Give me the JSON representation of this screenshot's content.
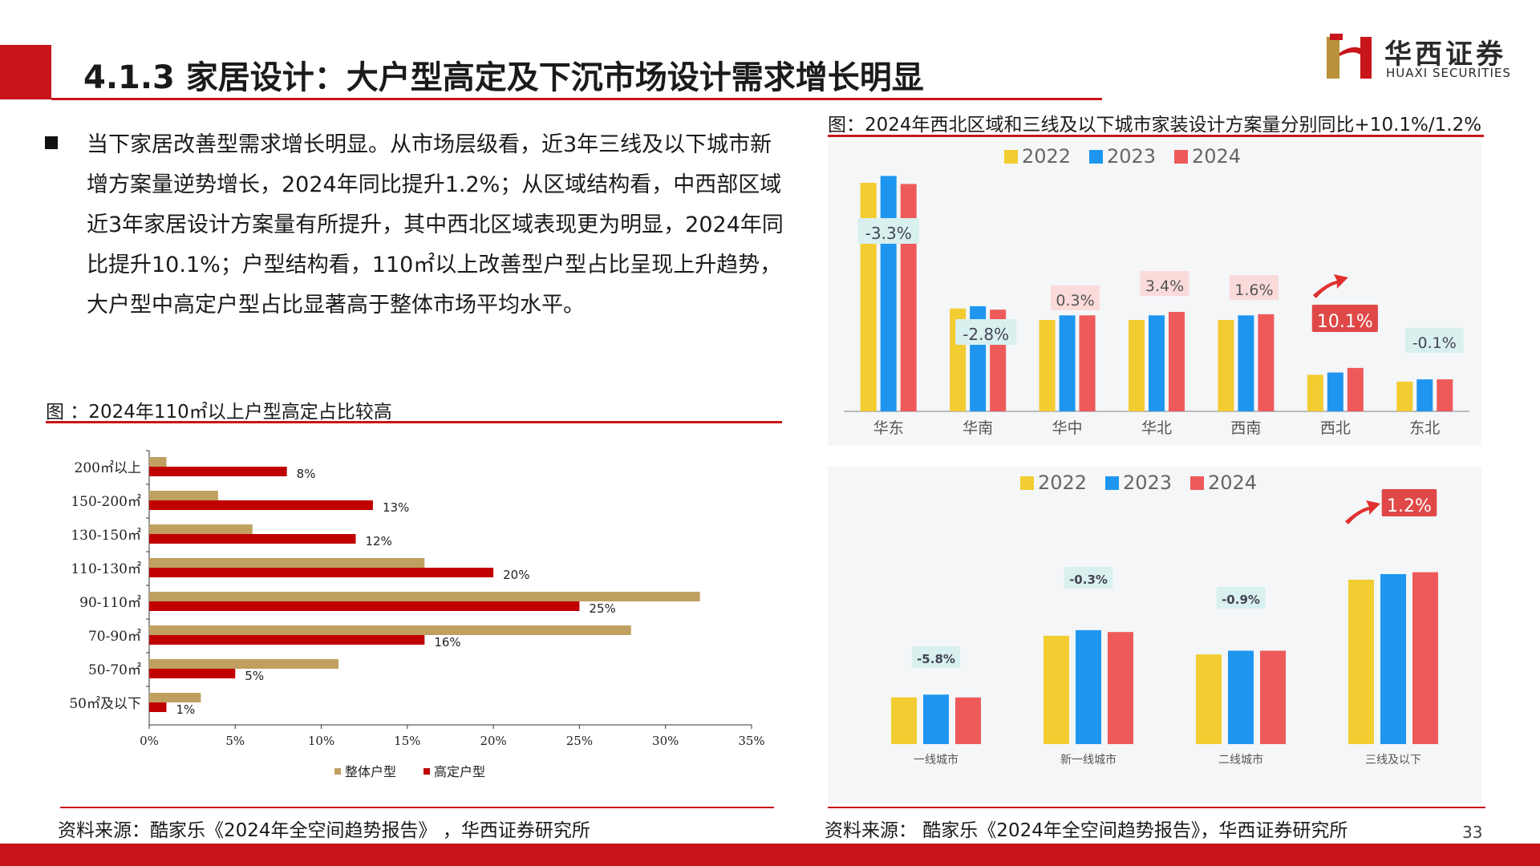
{
  "header": {
    "title": "4.1.3 家居设计：大户型高定及下沉市场设计需求增长明显",
    "logo_cn": "华西证券",
    "logo_en": "HUAXI SECURITIES"
  },
  "body": {
    "bullet": "当下家居改善型需求增长明显。从市场层级看，近3年三线及以下城市新增方案量逆势增长，2024年同比提升1.2%；从区域结构看，中西部区域近3年家居设计方案量有所提升，其中西北区域表现更为明显，2024年同比提升10.1%；户型结构看，110㎡以上改善型户型占比呈现上升趋势，大户型中高定户型占比显著高于整体市场平均水平。"
  },
  "left_chart": {
    "caption": "图 ：2024年110㎡以上户型高定占比较高",
    "source": "资料来源：酷家乐《2024年全空间趋势报告》 ，华西证券研究所"
  },
  "right_chart": {
    "caption": "图：2024年西北区域和三线及以下城市家装设计方案量分别同比+10.1%/1.2%",
    "source": "资料来源： 酷家乐《2024年全空间趋势报告》，华西证券研究所"
  },
  "page_number": "33",
  "colors": {
    "brand_red": "#c8141b",
    "bar_tan": "#c0a060",
    "bar_red": "#c00000",
    "y2022": "#f2cc30",
    "y2023": "#1e96f0",
    "y2024": "#ee5a5a"
  },
  "chart_data": [
    {
      "type": "bar",
      "orientation": "horizontal",
      "categories": [
        "200㎡以上",
        "150-200㎡",
        "130-150㎡",
        "110-130㎡",
        "90-110㎡",
        "70-90㎡",
        "50-70㎡",
        "50㎡及以下"
      ],
      "series": [
        {
          "name": "整体户型",
          "values": [
            1,
            4,
            6,
            16,
            32,
            28,
            11,
            3
          ]
        },
        {
          "name": "高定户型",
          "values": [
            8,
            13,
            12,
            20,
            25,
            16,
            5,
            1
          ]
        }
      ],
      "data_labels": [
        "8%",
        "13%",
        "12%",
        "20%",
        "25%",
        "16%",
        "5%",
        "1%"
      ],
      "xlim": [
        0,
        35
      ],
      "xticks": [
        "0%",
        "5%",
        "10%",
        "15%",
        "20%",
        "25%",
        "30%",
        "35%"
      ],
      "legend": "bottom"
    },
    {
      "type": "bar",
      "categories": [
        "华东",
        "华南",
        "华中",
        "华北",
        "西南",
        "西北",
        "东北"
      ],
      "series": [
        {
          "name": "2022",
          "values": [
            100,
            45,
            40,
            40,
            40,
            16,
            13
          ]
        },
        {
          "name": "2023",
          "values": [
            103,
            46,
            42,
            42,
            42,
            17,
            14
          ]
        },
        {
          "name": "2024",
          "values": [
            99.5,
            44.5,
            42,
            43.5,
            42.5,
            19,
            14
          ]
        }
      ],
      "annotations": [
        "-3.3%",
        "-2.8%",
        "0.3%",
        "3.4%",
        "1.6%",
        "10.1%",
        "-0.1%"
      ],
      "legend": "top"
    },
    {
      "type": "bar",
      "categories": [
        "一线城市",
        "新一线城市",
        "二线城市",
        "三线及以下"
      ],
      "series": [
        {
          "name": "2022",
          "values": [
            25,
            58,
            48,
            88
          ]
        },
        {
          "name": "2023",
          "values": [
            26.5,
            61,
            50,
            91
          ]
        },
        {
          "name": "2024",
          "values": [
            25,
            60,
            50,
            92
          ]
        }
      ],
      "annotations": [
        "-5.8%",
        "-0.3%",
        "-0.9%",
        "1.2%"
      ],
      "legend": "top"
    }
  ]
}
